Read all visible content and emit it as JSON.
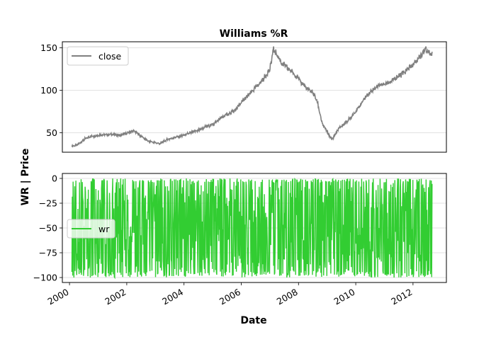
{
  "chart_data": {
    "title": "Williams %R",
    "xlabel": "Date",
    "ylabel": "WR | Price",
    "x_range": [
      "1999-10-01",
      "2013-03-01"
    ],
    "x_ticks": [
      "2000",
      "2002",
      "2004",
      "2006",
      "2008",
      "2010",
      "2012"
    ],
    "grid": "horizontal",
    "panels": [
      {
        "type": "line",
        "ylim": [
          27,
          157
        ],
        "y_ticks": [
          50,
          100,
          150
        ],
        "legend_position": "upper-left",
        "series": [
          {
            "name": "close",
            "color": "#808080",
            "points": [
              [
                "2000-02-01",
                34
              ],
              [
                "2000-04-01",
                35
              ],
              [
                "2000-06-01",
                40
              ],
              [
                "2000-09-01",
                45
              ],
              [
                "2001-01-01",
                47
              ],
              [
                "2001-06-01",
                48
              ],
              [
                "2001-10-01",
                47
              ],
              [
                "2002-01-01",
                49
              ],
              [
                "2002-04-01",
                52
              ],
              [
                "2002-06-01",
                48
              ],
              [
                "2002-10-01",
                40
              ],
              [
                "2003-03-01",
                37
              ],
              [
                "2003-06-01",
                42
              ],
              [
                "2004-01-01",
                47
              ],
              [
                "2004-06-01",
                52
              ],
              [
                "2005-01-01",
                60
              ],
              [
                "2005-06-01",
                70
              ],
              [
                "2005-10-01",
                75
              ],
              [
                "2006-01-01",
                85
              ],
              [
                "2006-06-01",
                100
              ],
              [
                "2006-10-01",
                112
              ],
              [
                "2007-01-01",
                125
              ],
              [
                "2007-02-15",
                148
              ],
              [
                "2007-06-01",
                132
              ],
              [
                "2007-11-01",
                120
              ],
              [
                "2008-02-01",
                110
              ],
              [
                "2008-05-01",
                100
              ],
              [
                "2008-07-01",
                98
              ],
              [
                "2008-09-01",
                85
              ],
              [
                "2008-11-01",
                60
              ],
              [
                "2009-03-01",
                42
              ],
              [
                "2009-06-01",
                55
              ],
              [
                "2009-10-01",
                65
              ],
              [
                "2010-01-01",
                75
              ],
              [
                "2010-06-01",
                95
              ],
              [
                "2010-10-01",
                105
              ],
              [
                "2011-03-01",
                110
              ],
              [
                "2011-06-01",
                115
              ],
              [
                "2011-09-01",
                120
              ],
              [
                "2012-01-01",
                130
              ],
              [
                "2012-04-01",
                140
              ],
              [
                "2012-06-01",
                148
              ],
              [
                "2012-09-01",
                142
              ]
            ]
          }
        ]
      },
      {
        "type": "line",
        "ylim": [
          -105,
          5
        ],
        "y_ticks": [
          0,
          -25,
          -50,
          -75,
          -100
        ],
        "legend_position": "center-left",
        "series": [
          {
            "name": "wr",
            "color": "#32cd32",
            "x_start": "2000-02-01",
            "x_end": "2012-09-01",
            "range": [
              -100,
              0
            ]
          }
        ]
      }
    ]
  }
}
